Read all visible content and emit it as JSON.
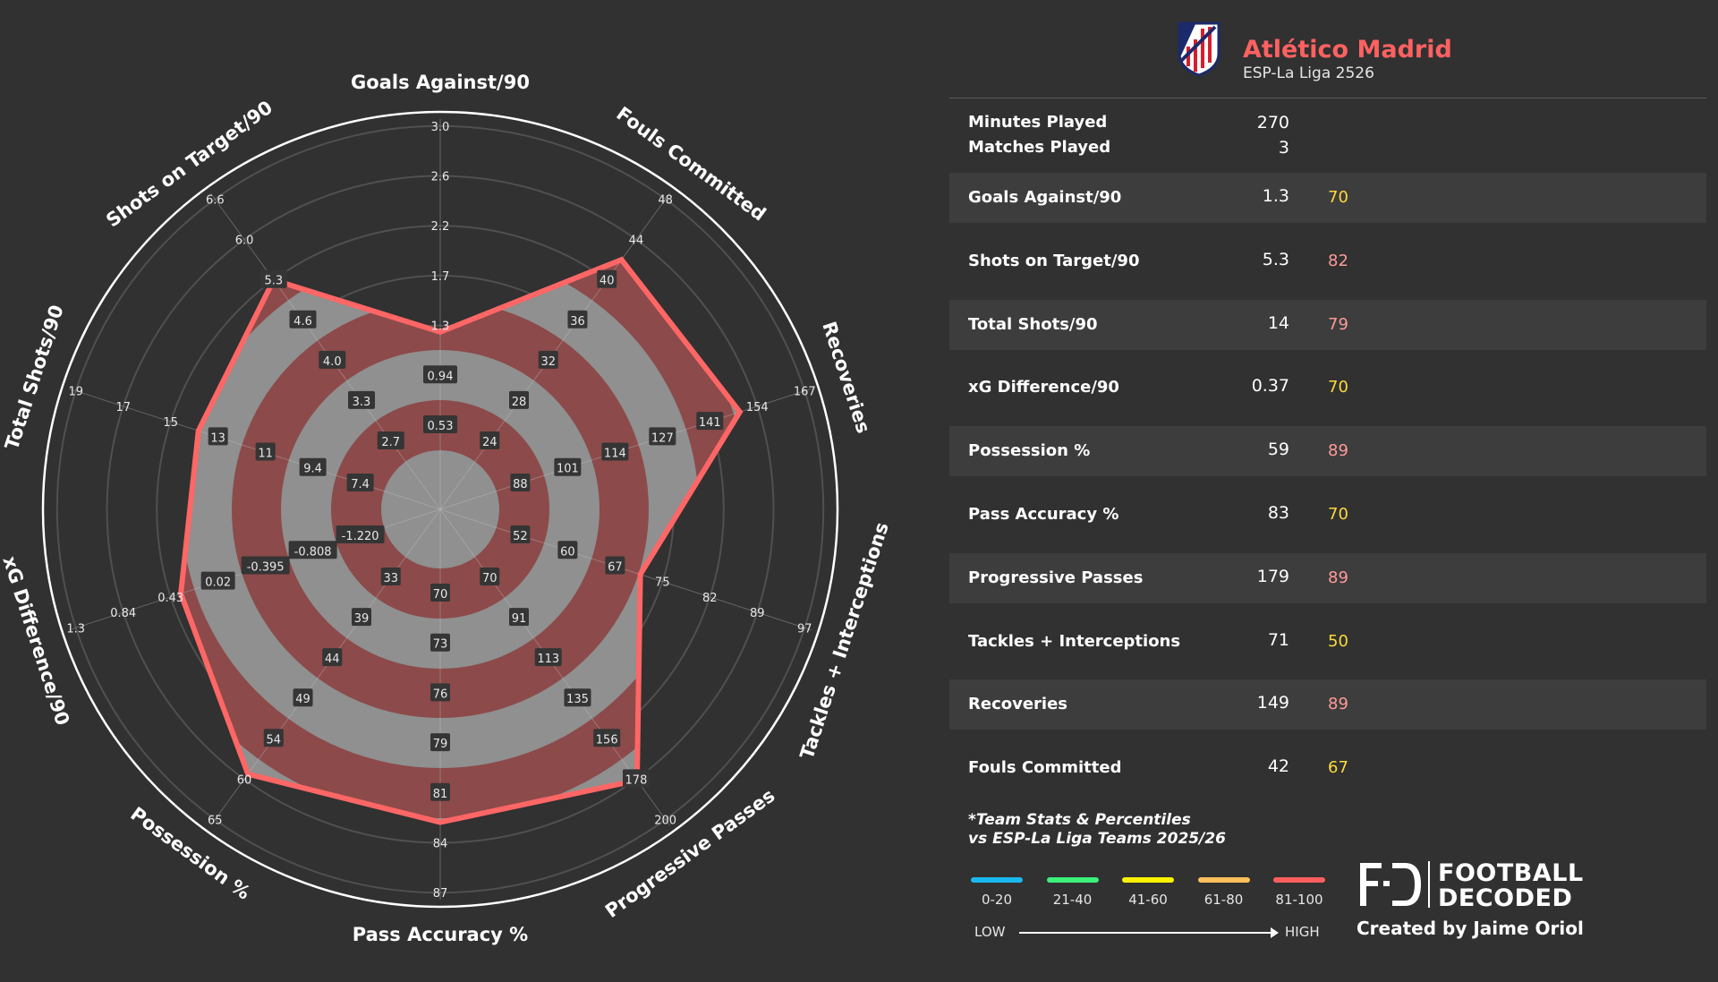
{
  "colors": {
    "background": "#303130",
    "polygon": "#ff6666",
    "band_red": "#8c4a4a",
    "band_gray": "#8f908f",
    "team": "#ff6161",
    "pct_gold": "#ffd93d",
    "pct_salmon": "#ff9a9a"
  },
  "header": {
    "team": "Atlético Madrid",
    "league": "ESP-La Liga 2526",
    "logo": "atletico-madrid-crest"
  },
  "meta": [
    {
      "label": "Minutes Played",
      "value": "270"
    },
    {
      "label": "Matches Played",
      "value": "3"
    }
  ],
  "stats": [
    {
      "label": "Goals Against/90",
      "value": "1.3",
      "percentile": "70",
      "pct_color": "#ffd93d"
    },
    {
      "label": "Shots on Target/90",
      "value": "5.3",
      "percentile": "82",
      "pct_color": "#ff9a9a"
    },
    {
      "label": "Total Shots/90",
      "value": "14",
      "percentile": "79",
      "pct_color": "#ff9a9a"
    },
    {
      "label": "xG Difference/90",
      "value": "0.37",
      "percentile": "70",
      "pct_color": "#ffd93d"
    },
    {
      "label": "Possession %",
      "value": "59",
      "percentile": "89",
      "pct_color": "#ff9a9a"
    },
    {
      "label": "Pass Accuracy %",
      "value": "83",
      "percentile": "70",
      "pct_color": "#ffd93d"
    },
    {
      "label": "Progressive Passes",
      "value": "179",
      "percentile": "89",
      "pct_color": "#ff9a9a"
    },
    {
      "label": "Tackles + Interceptions",
      "value": "71",
      "percentile": "50",
      "pct_color": "#ffd93d"
    },
    {
      "label": "Recoveries",
      "value": "149",
      "percentile": "89",
      "pct_color": "#ff9a9a"
    },
    {
      "label": "Fouls Committed",
      "value": "42",
      "percentile": "67",
      "pct_color": "#ffd93d"
    }
  ],
  "footnote": {
    "line1": "*Team Stats & Percentiles",
    "line2": "vs ESP-La Liga Teams 2025/26"
  },
  "legend": {
    "items": [
      {
        "label": "0-20",
        "color": "#1ab8f0"
      },
      {
        "label": "21-40",
        "color": "#3cf07a"
      },
      {
        "label": "41-60",
        "color": "#fff200"
      },
      {
        "label": "61-80",
        "color": "#ffbf5a"
      },
      {
        "label": "81-100",
        "color": "#ff5e5e"
      }
    ],
    "low": "LOW",
    "high": "HIGH"
  },
  "brand": {
    "line1": "FOOTBALL",
    "line2": "DECODED",
    "logo": "FD",
    "credit": "Created by Jaime Oriol"
  },
  "chart_data": {
    "type": "radar",
    "axes": [
      {
        "name": "Goals Against/90",
        "value": 1.3,
        "ticks": [
          "0.53",
          "0.94",
          "1.3",
          "1.7",
          "2.2",
          "2.6",
          "3.0"
        ]
      },
      {
        "name": "Fouls Committed",
        "value": 42,
        "ticks": [
          "24",
          "28",
          "32",
          "36",
          "40",
          "44",
          "48"
        ]
      },
      {
        "name": "Recoveries",
        "value": 149,
        "ticks": [
          "88",
          "101",
          "114",
          "127",
          "141",
          "154",
          "167"
        ]
      },
      {
        "name": "Tackles + Interceptions",
        "value": 71,
        "ticks": [
          "52",
          "60",
          "67",
          "75",
          "82",
          "89",
          "97"
        ]
      },
      {
        "name": "Progressive Passes",
        "value": 179,
        "ticks": [
          "70",
          "91",
          "113",
          "135",
          "156",
          "178",
          "200"
        ]
      },
      {
        "name": "Pass Accuracy %",
        "value": 83,
        "ticks": [
          "70",
          "73",
          "76",
          "79",
          "81",
          "84",
          "87"
        ]
      },
      {
        "name": "Possession %",
        "value": 59,
        "ticks": [
          "33",
          "39",
          "44",
          "49",
          "54",
          "60",
          "65"
        ]
      },
      {
        "name": "xG Difference/90",
        "value": 0.37,
        "ticks": [
          "-1.220",
          "-0.808",
          "-0.395",
          "0.02",
          "0.43",
          "0.84",
          "1.3"
        ]
      },
      {
        "name": "Total Shots/90",
        "value": 14,
        "ticks": [
          "7.4",
          "9.4",
          "11",
          "13",
          "15",
          "17",
          "19"
        ]
      },
      {
        "name": "Shots on Target/90",
        "value": 5.3,
        "ticks": [
          "2.7",
          "3.3",
          "4.0",
          "4.6",
          "5.3",
          "6.0",
          "6.6"
        ]
      }
    ]
  }
}
